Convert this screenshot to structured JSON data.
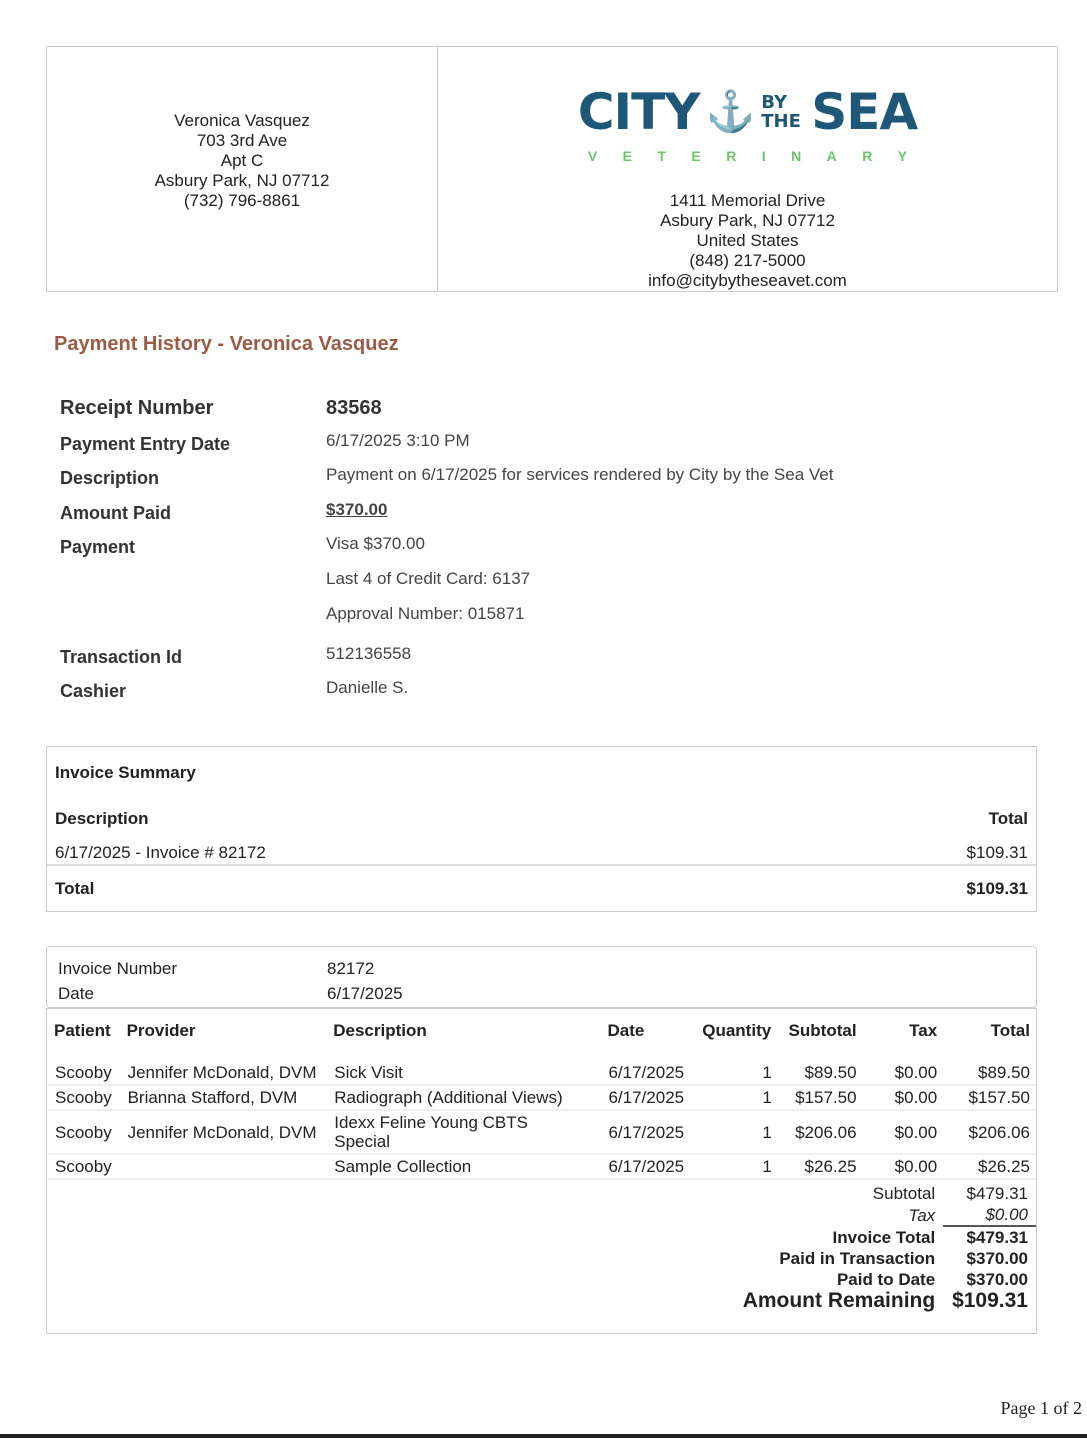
{
  "client": {
    "name": "Veronica Vasquez",
    "address1": "703 3rd Ave",
    "address2": "Apt C",
    "city": "Asbury Park, NJ 07712",
    "phone": "(732) 796-8861"
  },
  "clinic": {
    "logo_text": "CITY BY THE SEA VETERINARY",
    "logo_main1": "CITY",
    "logo_small": "BY THE",
    "logo_main2": "SEA",
    "logo_sub": [
      "V",
      "E",
      "T",
      "E",
      "R",
      "I",
      "N",
      "A",
      "R",
      "Y"
    ],
    "brand_color": "#1f5778",
    "accent_color": "#6cc46a",
    "address": "1411 Memorial Drive",
    "city": "Asbury Park, NJ 07712",
    "country": "United States",
    "phone": "(848) 217-5000",
    "email": "info@citybytheseavet.com"
  },
  "title": "Payment History - Veronica Vasquez",
  "details": {
    "receipt_label": "Receipt Number",
    "receipt": "83568",
    "entry_label": "Payment Entry Date",
    "entry": "6/17/2025 3:10 PM",
    "desc_label": "Description",
    "desc": "Payment on 6/17/2025 for services rendered by City by the Sea Vet",
    "amount_label": "Amount Paid",
    "amount": "$370.00",
    "payment_label": "Payment",
    "payment": "Visa $370.00",
    "card": "Last 4 of Credit Card: 6137",
    "approval": "Approval Number: 015871",
    "txn_label": "Transaction Id",
    "txn": "512136558",
    "cashier_label": "Cashier",
    "cashier": "Danielle S."
  },
  "summary": {
    "heading": "Invoice Summary",
    "col_desc": "Description",
    "col_total": "Total",
    "row_desc": "6/17/2025 - Invoice # 82172",
    "row_total": "$109.31",
    "total_label": "Total",
    "total": "$109.31"
  },
  "invoice": {
    "number_label": "Invoice Number",
    "number": "82172",
    "date_label": "Date",
    "date": "6/17/2025",
    "columns": [
      "Patient",
      "Provider",
      "Description",
      "Date",
      "Quantity",
      "Subtotal",
      "Tax",
      "Total"
    ],
    "rows": [
      [
        "Scooby",
        "Jennifer McDonald, DVM",
        "Sick Visit",
        "6/17/2025",
        "1",
        "$89.50",
        "$0.00",
        "$89.50"
      ],
      [
        "Scooby",
        "Brianna Stafford, DVM",
        "Radiograph (Additional Views)",
        "6/17/2025",
        "1",
        "$157.50",
        "$0.00",
        "$157.50"
      ],
      [
        "Scooby",
        "Jennifer McDonald, DVM",
        "Idexx Feline Young CBTS Special",
        "6/17/2025",
        "1",
        "$206.06",
        "$0.00",
        "$206.06"
      ],
      [
        "Scooby",
        "",
        "Sample Collection",
        "6/17/2025",
        "1",
        "$26.25",
        "$0.00",
        "$26.25"
      ]
    ],
    "totals": [
      {
        "label": "Subtotal",
        "value": "$479.31",
        "style": "normal"
      },
      {
        "label": "Tax",
        "value": "$0.00",
        "style": "italic"
      },
      {
        "label": "Invoice Total",
        "value": "$479.31",
        "style": "bold"
      },
      {
        "label": "Paid in Transaction",
        "value": "$370.00",
        "style": "bold"
      },
      {
        "label": "Paid to Date",
        "value": "$370.00",
        "style": "bold"
      },
      {
        "label": "Amount Remaining",
        "value": "$109.31",
        "style": "big"
      }
    ]
  },
  "footer": {
    "page": "Page 1 of 2"
  }
}
